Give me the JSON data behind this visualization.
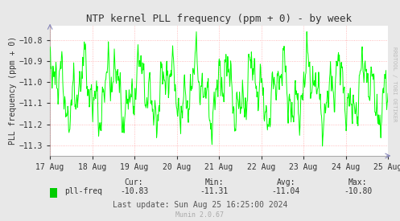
{
  "title": "NTP kernel PLL frequency (ppm + 0) - by week",
  "ylabel": "PLL frequency (ppm + 0)",
  "ylim": [
    -11.35,
    -10.73
  ],
  "yticks": [
    -11.3,
    -11.2,
    -11.1,
    -11.0,
    -10.9,
    -10.8
  ],
  "line_color": "#00ff00",
  "bg_color": "#ffffff",
  "grid_color": "#ffaaaa",
  "legend_label": "pll-freq",
  "legend_color": "#00cc00",
  "cur_label": "Cur:",
  "min_label": "Min:",
  "avg_label": "Avg:",
  "max_label": "Max:",
  "cur": "-10.83",
  "min": "-11.31",
  "avg": "-11.04",
  "max": "-10.80",
  "last_update": "Last update: Sun Aug 25 16:25:00 2024",
  "munin_version": "Munin 2.0.67",
  "watermark": "RRDTOOL / TOBI OETIKER",
  "xticklabels": [
    "17 Aug",
    "18 Aug",
    "19 Aug",
    "20 Aug",
    "21 Aug",
    "22 Aug",
    "23 Aug",
    "24 Aug",
    "25 Aug"
  ],
  "title_fontsize": 9,
  "label_fontsize": 7,
  "tick_fontsize": 7,
  "stats_fontsize": 7,
  "watermark_fontsize": 5,
  "munin_fontsize": 6,
  "fig_bg": "#e8e8e8"
}
